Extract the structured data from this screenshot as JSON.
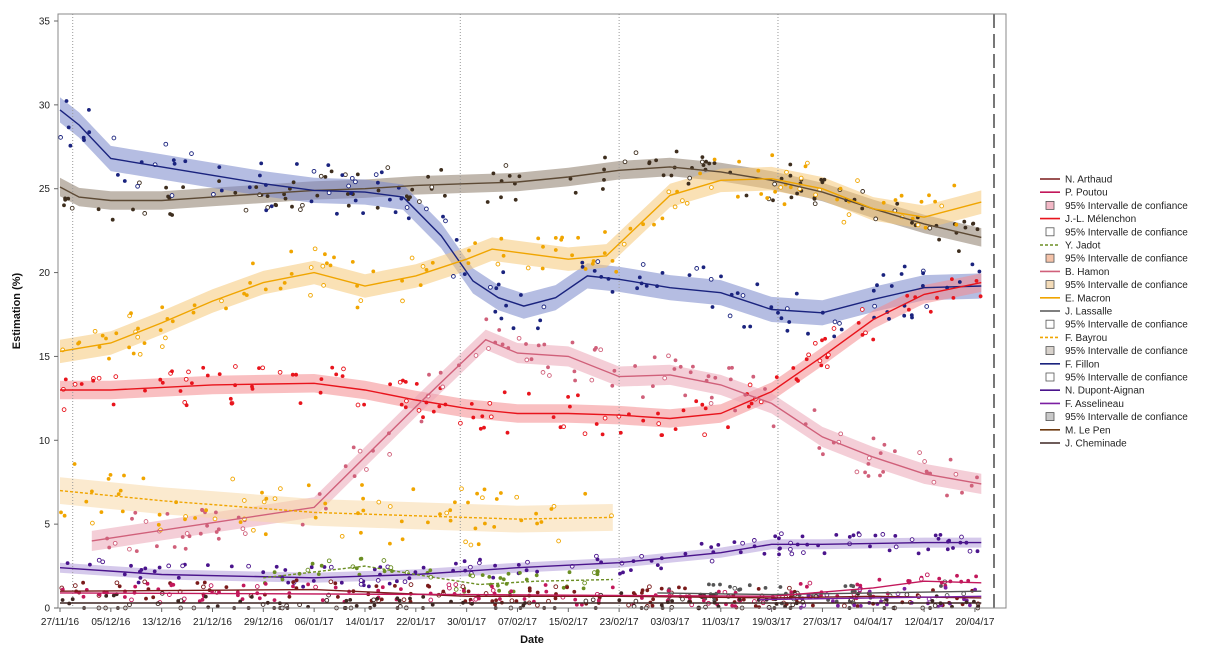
{
  "chart_data": {
    "type": "line",
    "xlabel": "Date",
    "ylabel": "Estimation (%)",
    "ylim": [
      0,
      35
    ],
    "yticks": [
      0,
      5,
      10,
      15,
      20,
      25,
      30,
      35
    ],
    "xlim": [
      "2016-11-27",
      "2017-04-23"
    ],
    "xticks": [
      "2016-11-27",
      "2016-12-05",
      "2016-12-13",
      "2016-12-21",
      "2016-12-29",
      "2017-01-06",
      "2017-01-14",
      "2017-01-22",
      "2017-01-30",
      "2017-02-07",
      "2017-02-15",
      "2017-02-23",
      "2017-03-03",
      "2017-03-11",
      "2017-03-19",
      "2017-03-27",
      "2017-04-04",
      "2017-04-12",
      "2017-04-20"
    ],
    "xtick_labels": [
      "27/11/16",
      "05/12/16",
      "13/12/16",
      "21/12/16",
      "29/12/16",
      "06/01/17",
      "14/01/17",
      "22/01/17",
      "30/01/17",
      "07/02/17",
      "15/02/17",
      "23/02/17",
      "03/03/17",
      "11/03/17",
      "19/03/17",
      "27/03/17",
      "04/04/17",
      "12/04/17",
      "20/04/17"
    ],
    "event_lines": [
      "2016-11-29",
      "2017-01-29",
      "2017-02-23",
      "2017-03-20"
    ],
    "end_line": "2017-04-23",
    "grid": false,
    "legend_position": "right",
    "legend": [
      {
        "label": "N. Arthaud",
        "kind": "line",
        "color": "#7a1a1a",
        "dash": "solid"
      },
      {
        "label": "P. Poutou",
        "kind": "line",
        "color": "#c2185b",
        "dash": "solid"
      },
      {
        "label": "95% Intervalle de confiance",
        "kind": "box",
        "color": "#f2b8c6"
      },
      {
        "label": "J.-L. Mélenchon",
        "kind": "line",
        "color": "#e8141c",
        "dash": "solid"
      },
      {
        "label": "95% Intervalle de confiance",
        "kind": "box",
        "color": "#ffffff"
      },
      {
        "label": "Y. Jadot",
        "kind": "line",
        "color": "#6b8e23",
        "dash": "dashed"
      },
      {
        "label": "95% Intervalle de confiance",
        "kind": "box",
        "color": "#f4c2a8"
      },
      {
        "label": "B. Hamon",
        "kind": "line",
        "color": "#d0607a",
        "dash": "solid"
      },
      {
        "label": "95% Intervalle de confiance",
        "kind": "box",
        "color": "#f3dbb8"
      },
      {
        "label": "E. Macron",
        "kind": "line",
        "color": "#f0a500",
        "dash": "solid"
      },
      {
        "label": "J. Lassalle",
        "kind": "line",
        "color": "#555555",
        "dash": "solid"
      },
      {
        "label": "95% Intervalle de confiance",
        "kind": "box",
        "color": "#ffffff"
      },
      {
        "label": "F. Bayrou",
        "kind": "line",
        "color": "#f0a500",
        "dash": "dashed"
      },
      {
        "label": "95% Intervalle de confiance",
        "kind": "box",
        "color": "#d8d2cc"
      },
      {
        "label": "F. Fillon",
        "kind": "line",
        "color": "#1a237e",
        "dash": "solid"
      },
      {
        "label": "95% Intervalle de confiance",
        "kind": "box",
        "color": "#ffffff"
      },
      {
        "label": "N. Dupont-Aignan",
        "kind": "line",
        "color": "#4a148c",
        "dash": "solid"
      },
      {
        "label": "F. Asselineau",
        "kind": "line",
        "color": "#7b1fa2",
        "dash": "solid"
      },
      {
        "label": "95% Intervalle de confiance",
        "kind": "box",
        "color": "#c8c8c8"
      },
      {
        "label": "M. Le Pen",
        "kind": "line",
        "color": "#6d3a10",
        "dash": "solid"
      },
      {
        "label": "J. Cheminade",
        "kind": "line",
        "color": "#3e2723",
        "dash": "solid"
      }
    ],
    "series": [
      {
        "name": "M. Le Pen",
        "color": "#5d4a35",
        "dash": "solid",
        "band": 0.55,
        "bandColor": "#8c7b6a",
        "dotColor": "#3e2e1e",
        "points": [
          [
            "2016-11-27",
            25.1
          ],
          [
            "2016-11-30",
            24.5
          ],
          [
            "2016-12-05",
            24.3
          ],
          [
            "2016-12-13",
            24.3
          ],
          [
            "2016-12-21",
            24.5
          ],
          [
            "2016-12-29",
            24.7
          ],
          [
            "2017-01-06",
            24.9
          ],
          [
            "2017-01-14",
            25.0
          ],
          [
            "2017-01-22",
            25.2
          ],
          [
            "2017-01-30",
            25.3
          ],
          [
            "2017-02-07",
            25.4
          ],
          [
            "2017-02-15",
            25.7
          ],
          [
            "2017-02-23",
            26.1
          ],
          [
            "2017-03-03",
            26.3
          ],
          [
            "2017-03-11",
            26.0
          ],
          [
            "2017-03-19",
            25.5
          ],
          [
            "2017-03-27",
            24.8
          ],
          [
            "2017-04-04",
            23.8
          ],
          [
            "2017-04-12",
            22.9
          ],
          [
            "2017-04-21",
            22.1
          ]
        ]
      },
      {
        "name": "F. Fillon",
        "color": "#1a237e",
        "dash": "solid",
        "band": 0.75,
        "bandColor": "#7986cb",
        "dotColor": "#1a237e",
        "points": [
          [
            "2016-11-27",
            29.7
          ],
          [
            "2016-11-30",
            28.8
          ],
          [
            "2016-12-05",
            26.8
          ],
          [
            "2016-12-13",
            26.3
          ],
          [
            "2016-12-21",
            25.8
          ],
          [
            "2016-12-29",
            25.3
          ],
          [
            "2017-01-06",
            24.9
          ],
          [
            "2017-01-14",
            24.8
          ],
          [
            "2017-01-20",
            24.5
          ],
          [
            "2017-01-26",
            22.2
          ],
          [
            "2017-01-31",
            19.5
          ],
          [
            "2017-02-04",
            18.5
          ],
          [
            "2017-02-08",
            18.0
          ],
          [
            "2017-02-13",
            18.5
          ],
          [
            "2017-02-18",
            19.8
          ],
          [
            "2017-02-23",
            19.6
          ],
          [
            "2017-03-03",
            19.1
          ],
          [
            "2017-03-11",
            18.8
          ],
          [
            "2017-03-19",
            17.8
          ],
          [
            "2017-03-27",
            17.6
          ],
          [
            "2017-04-04",
            18.4
          ],
          [
            "2017-04-12",
            19.1
          ],
          [
            "2017-04-21",
            19.2
          ]
        ]
      },
      {
        "name": "E. Macron",
        "color": "#f0a500",
        "dash": "solid",
        "band": 0.7,
        "bandColor": "#f5c878",
        "dotColor": "#f0a500",
        "points": [
          [
            "2016-11-27",
            15.3
          ],
          [
            "2016-12-05",
            15.8
          ],
          [
            "2016-12-13",
            17.0
          ],
          [
            "2016-12-21",
            18.3
          ],
          [
            "2016-12-29",
            19.4
          ],
          [
            "2017-01-06",
            20.0
          ],
          [
            "2017-01-14",
            19.2
          ],
          [
            "2017-01-22",
            19.8
          ],
          [
            "2017-01-30",
            20.8
          ],
          [
            "2017-02-03",
            21.4
          ],
          [
            "2017-02-11",
            21.0
          ],
          [
            "2017-02-15",
            20.8
          ],
          [
            "2017-02-21",
            21.0
          ],
          [
            "2017-03-03",
            24.6
          ],
          [
            "2017-03-11",
            25.5
          ],
          [
            "2017-03-19",
            25.6
          ],
          [
            "2017-03-27",
            25.0
          ],
          [
            "2017-04-04",
            23.8
          ],
          [
            "2017-04-12",
            23.3
          ],
          [
            "2017-04-21",
            24.2
          ]
        ]
      },
      {
        "name": "J.-L. Mélenchon",
        "color": "#e8141c",
        "dash": "solid",
        "band": 0.55,
        "bandColor": "#f48a8e",
        "dotColor": "#e8141c",
        "points": [
          [
            "2016-11-27",
            13.0
          ],
          [
            "2016-12-05",
            13.0
          ],
          [
            "2016-12-21",
            13.3
          ],
          [
            "2017-01-06",
            13.4
          ],
          [
            "2017-01-14",
            13.0
          ],
          [
            "2017-01-22",
            12.4
          ],
          [
            "2017-01-30",
            11.9
          ],
          [
            "2017-02-07",
            11.6
          ],
          [
            "2017-02-15",
            11.6
          ],
          [
            "2017-02-23",
            11.5
          ],
          [
            "2017-03-03",
            11.3
          ],
          [
            "2017-03-11",
            11.6
          ],
          [
            "2017-03-19",
            12.9
          ],
          [
            "2017-03-27",
            15.0
          ],
          [
            "2017-04-04",
            17.2
          ],
          [
            "2017-04-12",
            18.7
          ],
          [
            "2017-04-21",
            19.4
          ]
        ]
      },
      {
        "name": "B. Hamon",
        "color": "#d0607a",
        "dash": "solid",
        "band": 0.6,
        "bandColor": "#eba5b6",
        "dotColor": "#d0607a",
        "points": [
          [
            "2016-12-02",
            4.0
          ],
          [
            "2017-01-06",
            6.0
          ],
          [
            "2017-01-22",
            12.0
          ],
          [
            "2017-02-02",
            16.0
          ],
          [
            "2017-02-07",
            15.2
          ],
          [
            "2017-02-15",
            15.0
          ],
          [
            "2017-02-23",
            13.8
          ],
          [
            "2017-03-03",
            13.9
          ],
          [
            "2017-03-11",
            13.3
          ],
          [
            "2017-03-19",
            12.2
          ],
          [
            "2017-03-27",
            10.2
          ],
          [
            "2017-04-04",
            9.0
          ],
          [
            "2017-04-12",
            8.0
          ],
          [
            "2017-04-21",
            7.4
          ]
        ]
      },
      {
        "name": "F. Bayrou",
        "color": "#f0a500",
        "dash": "dashed",
        "band": 0.8,
        "bandColor": "#f8d8a8",
        "dotColor": "#f0a500",
        "points": [
          [
            "2016-11-27",
            7.0
          ],
          [
            "2016-12-13",
            6.4
          ],
          [
            "2017-01-06",
            5.7
          ],
          [
            "2017-01-22",
            5.5
          ],
          [
            "2017-02-07",
            5.3
          ],
          [
            "2017-02-22",
            5.4
          ]
        ]
      },
      {
        "name": "N. Dupont-Aignan",
        "color": "#4a148c",
        "dash": "solid",
        "band": 0.3,
        "bandColor": "#b39ddb",
        "dotColor": "#4a148c",
        "points": [
          [
            "2016-11-27",
            2.4
          ],
          [
            "2016-12-13",
            2.0
          ],
          [
            "2017-01-06",
            1.8
          ],
          [
            "2017-01-22",
            2.0
          ],
          [
            "2017-02-07",
            2.4
          ],
          [
            "2017-02-23",
            2.7
          ],
          [
            "2017-03-11",
            3.3
          ],
          [
            "2017-03-19",
            3.8
          ],
          [
            "2017-03-27",
            3.8
          ],
          [
            "2017-04-12",
            3.9
          ],
          [
            "2017-04-21",
            3.9
          ]
        ]
      },
      {
        "name": "Y. Jadot",
        "color": "#6b8e23",
        "dash": "dashed",
        "band": 0,
        "bandColor": "#c5e1a5",
        "dotColor": "#6b8e23",
        "points": [
          [
            "2016-12-29",
            1.8
          ],
          [
            "2017-01-14",
            2.5
          ],
          [
            "2017-01-22",
            2.0
          ],
          [
            "2017-02-01",
            1.4
          ],
          [
            "2017-02-10",
            1.6
          ],
          [
            "2017-02-22",
            1.7
          ]
        ]
      },
      {
        "name": "N. Arthaud",
        "color": "#7a1a1a",
        "dash": "solid",
        "band": 0,
        "bandColor": "#e0b0b0",
        "dotColor": "#7a1a1a",
        "points": [
          [
            "2016-11-27",
            1.0
          ],
          [
            "2017-01-06",
            1.1
          ],
          [
            "2017-01-30",
            0.7
          ],
          [
            "2017-02-23",
            0.7
          ],
          [
            "2017-03-19",
            0.6
          ],
          [
            "2017-04-04",
            0.7
          ],
          [
            "2017-04-21",
            0.6
          ]
        ]
      },
      {
        "name": "J. Lassalle",
        "color": "#555555",
        "dash": "solid",
        "band": 0,
        "bandColor": "#cccccc",
        "dotColor": "#555555",
        "points": [
          [
            "2017-03-01",
            0.9
          ],
          [
            "2017-03-19",
            0.8
          ],
          [
            "2017-04-04",
            0.9
          ],
          [
            "2017-04-21",
            1.0
          ]
        ]
      },
      {
        "name": "P. Poutou",
        "color": "#c2185b",
        "dash": "solid",
        "band": 0,
        "bandColor": "#f8bbd0",
        "dotColor": "#c2185b",
        "points": [
          [
            "2016-11-27",
            0.9
          ],
          [
            "2017-01-30",
            0.8
          ],
          [
            "2017-03-19",
            0.7
          ],
          [
            "2017-04-04",
            1.2
          ],
          [
            "2017-04-12",
            1.6
          ],
          [
            "2017-04-21",
            1.5
          ]
        ]
      },
      {
        "name": "F. Asselineau",
        "color": "#7b1fa2",
        "dash": "solid",
        "band": 0,
        "bandColor": "#e1bee7",
        "dotColor": "#7b1fa2",
        "points": [
          [
            "2017-03-17",
            0.5
          ],
          [
            "2017-04-04",
            0.6
          ],
          [
            "2017-04-21",
            0.7
          ]
        ]
      },
      {
        "name": "J. Cheminade",
        "color": "#3e2723",
        "dash": "solid",
        "band": 0,
        "bandColor": "#d7ccc8",
        "dotColor": "#3e2723",
        "points": [
          [
            "2016-11-27",
            0.3
          ],
          [
            "2017-01-30",
            0.3
          ],
          [
            "2017-03-19",
            0.3
          ],
          [
            "2017-04-21",
            0.3
          ]
        ]
      }
    ]
  }
}
